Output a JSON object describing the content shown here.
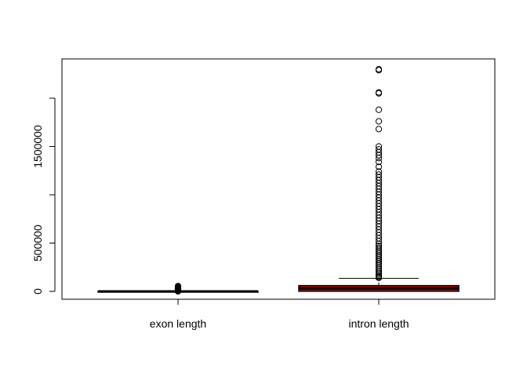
{
  "chart_data": {
    "type": "boxplot",
    "title": "",
    "xlabel": "",
    "ylabel": "",
    "ylim": [
      -90000,
      2370000
    ],
    "yticks": [
      0,
      500000,
      1000000,
      1500000,
      2000000
    ],
    "ytick_labels": [
      "0",
      "500000",
      "",
      "1500000",
      ""
    ],
    "categories": [
      "exon length",
      "intron length"
    ],
    "boxes": [
      {
        "name": "exon length",
        "whisker_low": 1,
        "q1": 100,
        "median": 150,
        "q3": 250,
        "whisker_high": 700,
        "fill": "#000000",
        "outliers": [
          750,
          1500,
          3000,
          6000,
          10000,
          15000,
          20000,
          26000,
          33000,
          40000,
          48000,
          55000
        ]
      },
      {
        "name": "intron length",
        "whisker_low": 30,
        "q1": 1500,
        "median": 30000,
        "q3": 60000,
        "whisker_high": 135000,
        "fill": "#c00000",
        "outliers": [
          140000,
          150000,
          160000,
          175000,
          190000,
          210000,
          230000,
          250000,
          270000,
          290000,
          310000,
          330000,
          350000,
          370000,
          390000,
          410000,
          430000,
          450000,
          470000,
          490000,
          520000,
          550000,
          580000,
          610000,
          640000,
          670000,
          700000,
          730000,
          760000,
          790000,
          820000,
          850000,
          880000,
          910000,
          940000,
          970000,
          1000000,
          1030000,
          1060000,
          1090000,
          1120000,
          1150000,
          1180000,
          1210000,
          1240000,
          1290000,
          1340000,
          1380000,
          1410000,
          1440000,
          1470000,
          1500000,
          1680000,
          1760000,
          1880000,
          2050000,
          2060000,
          2290000,
          2300000
        ]
      }
    ]
  }
}
